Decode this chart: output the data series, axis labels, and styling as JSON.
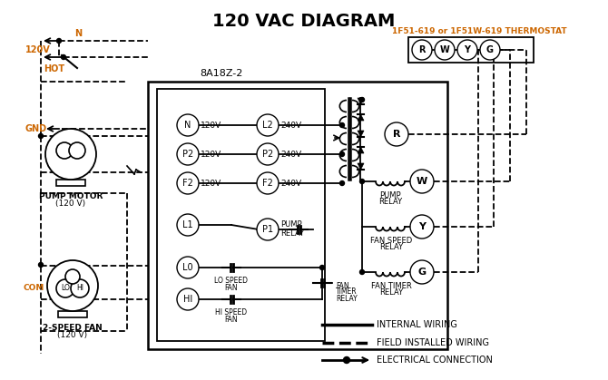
{
  "title": "120 VAC DIAGRAM",
  "title_fontsize": 14,
  "title_weight": "bold",
  "bg_color": "#ffffff",
  "line_color": "#000000",
  "orange_color": "#cc6600",
  "thermostat_label": "1F51-619 or 1F51W-619 THERMOSTAT",
  "control_box_label": "8A18Z-2",
  "terminal_labels": [
    "R",
    "W",
    "Y",
    "G"
  ],
  "voltage_labels_left": [
    "120V",
    "120V",
    "120V"
  ],
  "voltage_labels_right": [
    "240V",
    "240V",
    "240V"
  ]
}
